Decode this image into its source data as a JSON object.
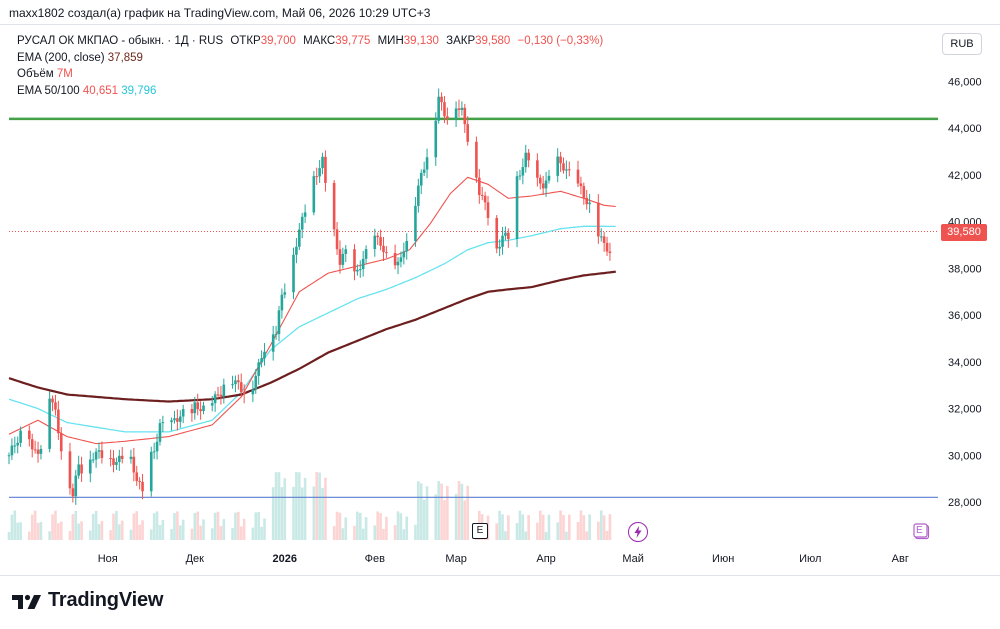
{
  "credit": "maxx1802 создал(а) график на TradingView.com, Май 06, 2026 10:29 UTC+3",
  "legend": {
    "symbol": "РУСАЛ ОК МКПАО - обыкн. · 1Д · RUS",
    "open_label": "ОТКР",
    "open": "39,700",
    "high_label": "МАКС",
    "high": "39,775",
    "low_label": "МИН",
    "low": "39,130",
    "close_label": "ЗАКР",
    "close": "39,580",
    "change": "−0,130 (−0,33%)",
    "ema200_label": "EMA (200, close)",
    "ema200": "37,859",
    "volume_label": "Объём",
    "volume": "7M",
    "ema50_100_label": "EMA 50/100",
    "ema50": "40,651",
    "ema100": "39,796"
  },
  "currency_button": "RUB",
  "price_tag": "39,580",
  "logo_text": "TradingView",
  "event_icons": {
    "earnings": "E",
    "dividends": "lightning-icon",
    "future_earnings": "E"
  },
  "colors": {
    "up": "#26a69a",
    "down": "#ef5350",
    "ema50": "#ef5350",
    "ema100": "#67e3f0",
    "ema200": "#6d1f1f",
    "hline_green": "#43a047",
    "hline_blue": "#5b7fd0"
  },
  "chart_data": {
    "type": "candlestick",
    "title": "РУСАЛ ОК МКПАО - обыкн. · 1Д · RUS",
    "ylim": [
      27000,
      47000
    ],
    "y_ticks": [
      "28,000",
      "30,000",
      "32,000",
      "34,000",
      "36,000",
      "38,000",
      "40,000",
      "42,000",
      "44,000",
      "46,000"
    ],
    "y_tick_values": [
      28000,
      30000,
      32000,
      34000,
      36000,
      38000,
      40000,
      42000,
      44000,
      46000
    ],
    "x_ticks": [
      "Ноя",
      "Дек",
      "2026",
      "Фев",
      "Мар",
      "Апр",
      "Май",
      "Июн",
      "Июл",
      "Авг"
    ],
    "x_tick_days": [
      34,
      64,
      95,
      126,
      154,
      185,
      215,
      246,
      276,
      307
    ],
    "horizontal_lines": [
      44400,
      28200
    ],
    "last_price": 39580,
    "close_points_day_price": [
      [
        0,
        30000
      ],
      [
        3,
        30700
      ],
      [
        6,
        31500
      ],
      [
        8,
        30100
      ],
      [
        11,
        30300
      ],
      [
        14,
        32600
      ],
      [
        16,
        31800
      ],
      [
        18,
        30300
      ],
      [
        20,
        29200
      ],
      [
        22,
        28300
      ],
      [
        24,
        29600
      ],
      [
        26,
        29200
      ],
      [
        28,
        29900
      ],
      [
        31,
        30100
      ],
      [
        34,
        29900
      ],
      [
        37,
        29700
      ],
      [
        40,
        30000
      ],
      [
        42,
        29800
      ],
      [
        44,
        29000
      ],
      [
        46,
        28400
      ],
      [
        47,
        29500
      ],
      [
        50,
        30200
      ],
      [
        52,
        31300
      ],
      [
        55,
        31200
      ],
      [
        57,
        31500
      ],
      [
        60,
        31800
      ],
      [
        62,
        31400
      ],
      [
        64,
        32100
      ],
      [
        67,
        32000
      ],
      [
        70,
        32300
      ],
      [
        73,
        32700
      ],
      [
        75,
        33300
      ],
      [
        77,
        33200
      ],
      [
        79,
        33000
      ],
      [
        81,
        32700
      ],
      [
        84,
        33000
      ],
      [
        86,
        33800
      ],
      [
        88,
        34600
      ],
      [
        90,
        35300
      ],
      [
        92,
        35300
      ],
      [
        94,
        36800
      ],
      [
        96,
        37500
      ],
      [
        98,
        38600
      ],
      [
        100,
        39600
      ],
      [
        102,
        40500
      ],
      [
        104,
        41600
      ],
      [
        106,
        42100
      ],
      [
        108,
        42600
      ],
      [
        110,
        40700
      ],
      [
        112,
        39500
      ],
      [
        114,
        38300
      ],
      [
        116,
        38700
      ],
      [
        118,
        37500
      ],
      [
        120,
        37900
      ],
      [
        122,
        38400
      ],
      [
        124,
        38900
      ],
      [
        126,
        39300
      ],
      [
        128,
        39100
      ],
      [
        130,
        38500
      ],
      [
        132,
        38200
      ],
      [
        134,
        38100
      ],
      [
        136,
        38900
      ],
      [
        138,
        39300
      ],
      [
        140,
        40800
      ],
      [
        142,
        42000
      ],
      [
        144,
        42800
      ],
      [
        146,
        43700
      ],
      [
        148,
        45300
      ],
      [
        150,
        44600
      ],
      [
        152,
        44500
      ],
      [
        154,
        45000
      ],
      [
        156,
        44700
      ],
      [
        158,
        43600
      ],
      [
        160,
        42600
      ],
      [
        162,
        41300
      ],
      [
        164,
        40700
      ],
      [
        166,
        39900
      ],
      [
        168,
        38800
      ],
      [
        170,
        39400
      ],
      [
        172,
        39300
      ],
      [
        174,
        41500
      ],
      [
        176,
        42100
      ],
      [
        178,
        42800
      ],
      [
        180,
        42300
      ],
      [
        182,
        41700
      ],
      [
        184,
        41600
      ],
      [
        186,
        41800
      ],
      [
        188,
        42900
      ],
      [
        190,
        42400
      ],
      [
        192,
        42300
      ],
      [
        194,
        41800
      ],
      [
        196,
        41600
      ],
      [
        198,
        41100
      ],
      [
        200,
        40700
      ],
      [
        202,
        39700
      ],
      [
        204,
        39200
      ],
      [
        206,
        38900
      ],
      [
        208,
        38400
      ],
      [
        209,
        39580
      ]
    ],
    "ema50_day_price": [
      [
        0,
        30900
      ],
      [
        10,
        31500
      ],
      [
        20,
        30800
      ],
      [
        30,
        30500
      ],
      [
        40,
        30600
      ],
      [
        55,
        30800
      ],
      [
        70,
        31300
      ],
      [
        80,
        32500
      ],
      [
        90,
        34700
      ],
      [
        100,
        37000
      ],
      [
        110,
        37800
      ],
      [
        120,
        38100
      ],
      [
        130,
        38400
      ],
      [
        138,
        38800
      ],
      [
        145,
        39900
      ],
      [
        152,
        41200
      ],
      [
        158,
        41900
      ],
      [
        165,
        41600
      ],
      [
        172,
        41000
      ],
      [
        180,
        41100
      ],
      [
        190,
        41300
      ],
      [
        198,
        41000
      ],
      [
        205,
        40700
      ],
      [
        209,
        40651
      ]
    ],
    "ema100_day_price": [
      [
        0,
        32400
      ],
      [
        10,
        32000
      ],
      [
        20,
        31400
      ],
      [
        30,
        31200
      ],
      [
        40,
        31000
      ],
      [
        55,
        31000
      ],
      [
        70,
        31500
      ],
      [
        80,
        32700
      ],
      [
        90,
        34500
      ],
      [
        100,
        35500
      ],
      [
        110,
        36100
      ],
      [
        120,
        36700
      ],
      [
        130,
        37100
      ],
      [
        140,
        37600
      ],
      [
        150,
        38200
      ],
      [
        158,
        38800
      ],
      [
        165,
        39100
      ],
      [
        172,
        39200
      ],
      [
        180,
        39400
      ],
      [
        190,
        39700
      ],
      [
        198,
        39800
      ],
      [
        205,
        39800
      ],
      [
        209,
        39796
      ]
    ],
    "ema200_day_price": [
      [
        0,
        33300
      ],
      [
        10,
        32900
      ],
      [
        20,
        32600
      ],
      [
        30,
        32500
      ],
      [
        40,
        32400
      ],
      [
        55,
        32300
      ],
      [
        70,
        32400
      ],
      [
        80,
        32600
      ],
      [
        90,
        33100
      ],
      [
        100,
        33700
      ],
      [
        110,
        34400
      ],
      [
        120,
        34900
      ],
      [
        130,
        35400
      ],
      [
        140,
        35800
      ],
      [
        150,
        36300
      ],
      [
        158,
        36700
      ],
      [
        165,
        37000
      ],
      [
        172,
        37100
      ],
      [
        180,
        37200
      ],
      [
        190,
        37500
      ],
      [
        198,
        37700
      ],
      [
        205,
        37800
      ],
      [
        209,
        37859
      ]
    ]
  }
}
